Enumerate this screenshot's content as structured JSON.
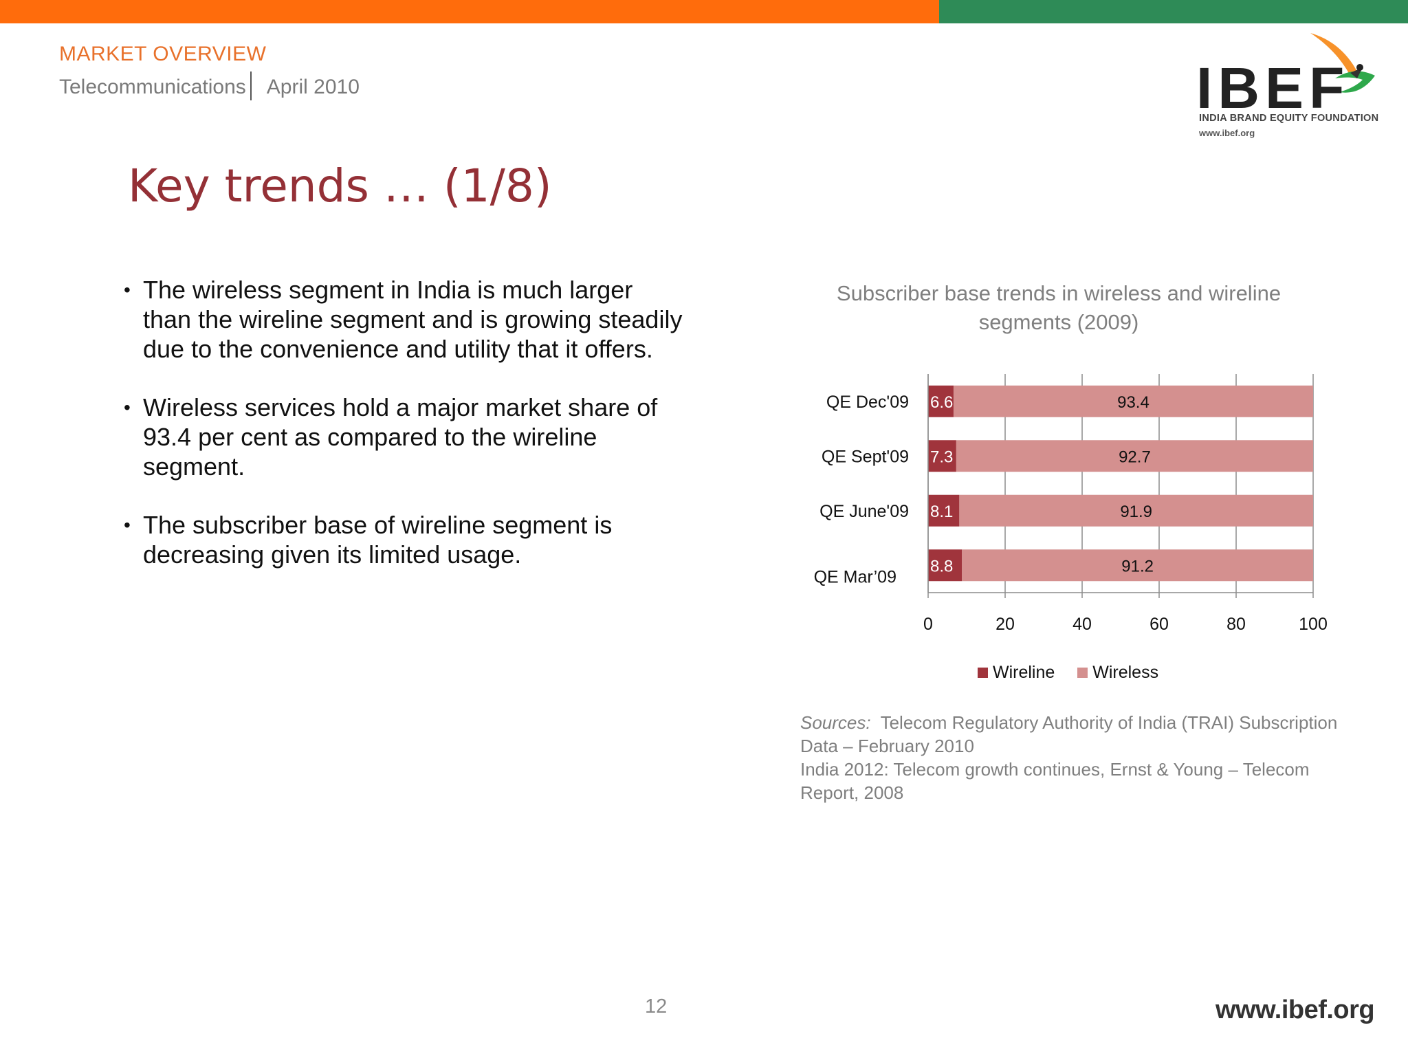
{
  "header": {
    "section": "MARKET OVERVIEW",
    "industry": "Telecommunications",
    "date": "April 2010"
  },
  "logo": {
    "name": "IBEF",
    "tagline": "INDIA BRAND EQUITY FOUNDATION",
    "url": "www.ibef.org"
  },
  "slide": {
    "title": "Key trends … (1/8)",
    "bullets": [
      "The wireless segment in India is much larger than the wireline segment and is growing steadily due  to the convenience and utility that it offers.",
      "Wireless services hold a major market share of 93.4 per cent as compared to the wireline segment.",
      "The subscriber base of wireline segment is decreasing given its limited usage."
    ]
  },
  "chart_data": {
    "type": "bar",
    "orientation": "horizontal",
    "stacked": true,
    "title": "Subscriber base trends in wireless and wireline segments (2009)",
    "categories": [
      "QE Dec'09",
      "QE Sept'09",
      "QE June'09",
      "QE Mar’09"
    ],
    "series": [
      {
        "name": "Wireline",
        "values": [
          6.6,
          7.3,
          8.1,
          8.8
        ],
        "color": "#A0343C"
      },
      {
        "name": "Wireless",
        "values": [
          93.4,
          92.7,
          91.9,
          91.2
        ],
        "color": "#D4908F"
      }
    ],
    "xlim": [
      0,
      100
    ],
    "xticks": [
      0,
      20,
      40,
      60,
      80,
      100
    ],
    "grid": true,
    "legend_position": "bottom"
  },
  "sources": {
    "label": "Sources:",
    "line1": "Telecom Regulatory Authority of India (TRAI) Subscription Data – February 2010",
    "line2": "India 2012: Telecom growth continues, Ernst & Young – Telecom Report, 2008"
  },
  "footer": {
    "page_number": "12",
    "url": "www.ibef.org"
  }
}
